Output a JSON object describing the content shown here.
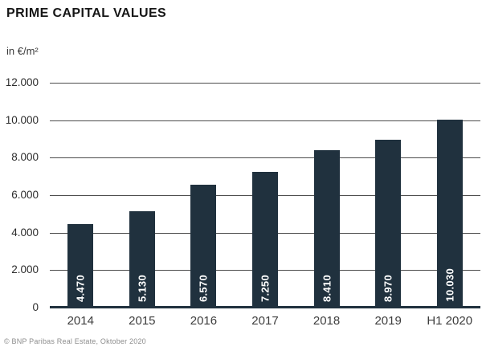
{
  "page": {
    "title": "PRIME CAPITAL VALUES",
    "unit_label": "in €/m²",
    "source_note": "© BNP Paribas Real Estate, Oktober 2020"
  },
  "chart_data": {
    "type": "bar",
    "title": "PRIME CAPITAL VALUES",
    "ylabel": "in €/m²",
    "xlabel": "",
    "categories": [
      "2014",
      "2015",
      "2016",
      "2017",
      "2018",
      "2019",
      "H1 2020"
    ],
    "values": [
      4470,
      5130,
      6570,
      7250,
      8410,
      8970,
      10030
    ],
    "bar_labels": [
      "4.470",
      "5.130",
      "6.570",
      "7.250",
      "8.410",
      "8.970",
      "10.030"
    ],
    "y_ticks": [
      {
        "value": 12000,
        "label": "12.000"
      },
      {
        "value": 10000,
        "label": "10.000"
      },
      {
        "value": 8000,
        "label": "8.000"
      },
      {
        "value": 6000,
        "label": "6.000"
      },
      {
        "value": 4000,
        "label": "4.000"
      },
      {
        "value": 2000,
        "label": "2.000"
      },
      {
        "value": 0,
        "label": "0"
      }
    ],
    "ylim": [
      0,
      12000
    ],
    "grid": true,
    "legend_position": "none",
    "colors": {
      "bar": "#20313e",
      "axis": "#20313e",
      "gridline": "#4d4d4d",
      "bar_label_text": "#ffffff"
    },
    "source": "© BNP Paribas Real Estate, Oktober 2020"
  }
}
